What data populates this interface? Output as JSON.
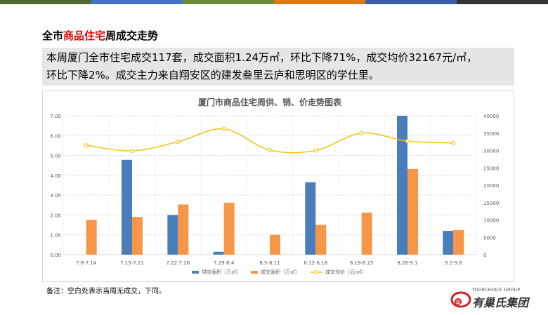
{
  "colors": {
    "topbar": [
      "#4d6a2e",
      "#4472c4",
      "#6f8c3a",
      "#e07a10",
      "#3a5fa8",
      "#333333"
    ],
    "supply": "#4a7ebb",
    "deal_area": "#f79646",
    "price": "#f5c518",
    "title_highlight": "#e00000",
    "logo_red": "#d42020"
  },
  "header": {
    "title_pre": "全市",
    "title_highlight": "商品住宅",
    "title_post": "周成交走势"
  },
  "summary": {
    "line1": "本周厦门全市住宅成交117套，成交面积1.24万㎡，环比下降71%，成交均价32167元/㎡，",
    "line2": "环比下降2%。成交主力来自翔安区的建发叁里云庐和思明区的学仕里。"
  },
  "chart_data": {
    "type": "bar",
    "title": "厦门市商品住宅周供、销、价走势图表",
    "categories": [
      "7.8-7.14",
      "7.15-7.21",
      "7.22-7.28",
      "7.29-8.4",
      "8.5-8.11",
      "8.12-8.18",
      "8.19-8.25",
      "8.26-9.1",
      "9.2-9.8"
    ],
    "series": [
      {
        "name": "供应面积（万㎡）",
        "type": "bar",
        "axis": "left",
        "values": [
          0,
          4.78,
          2.0,
          0.15,
          0,
          3.65,
          0,
          7.0,
          1.2
        ]
      },
      {
        "name": "成交面积（万㎡）",
        "type": "bar",
        "axis": "left",
        "values": [
          1.75,
          1.9,
          2.53,
          2.62,
          1.0,
          1.5,
          2.12,
          4.32,
          1.24
        ]
      },
      {
        "name": "成交均价（元/㎡）",
        "type": "line",
        "axis": "right",
        "values": [
          31500,
          29900,
          32500,
          36200,
          30100,
          30000,
          35000,
          32700,
          32167
        ]
      }
    ],
    "y_left": {
      "min": 0,
      "max": 7,
      "ticks": [
        "0.00",
        "1.00",
        "2.00",
        "3.00",
        "4.00",
        "5.00",
        "6.00",
        "7.00"
      ]
    },
    "y_right": {
      "min": 0,
      "max": 40000,
      "ticks": [
        "0",
        "5000",
        "10000",
        "15000",
        "20000",
        "25000",
        "30000",
        "35000",
        "40000"
      ]
    },
    "grid": true,
    "legend_position": "bottom"
  },
  "footer": {
    "note": "备注：空白处表示当周无成交，下同。",
    "logo_en": "YOURCHOICE GROUP",
    "logo_cn": "有巢氏集团",
    "logo_mark": "巢"
  }
}
